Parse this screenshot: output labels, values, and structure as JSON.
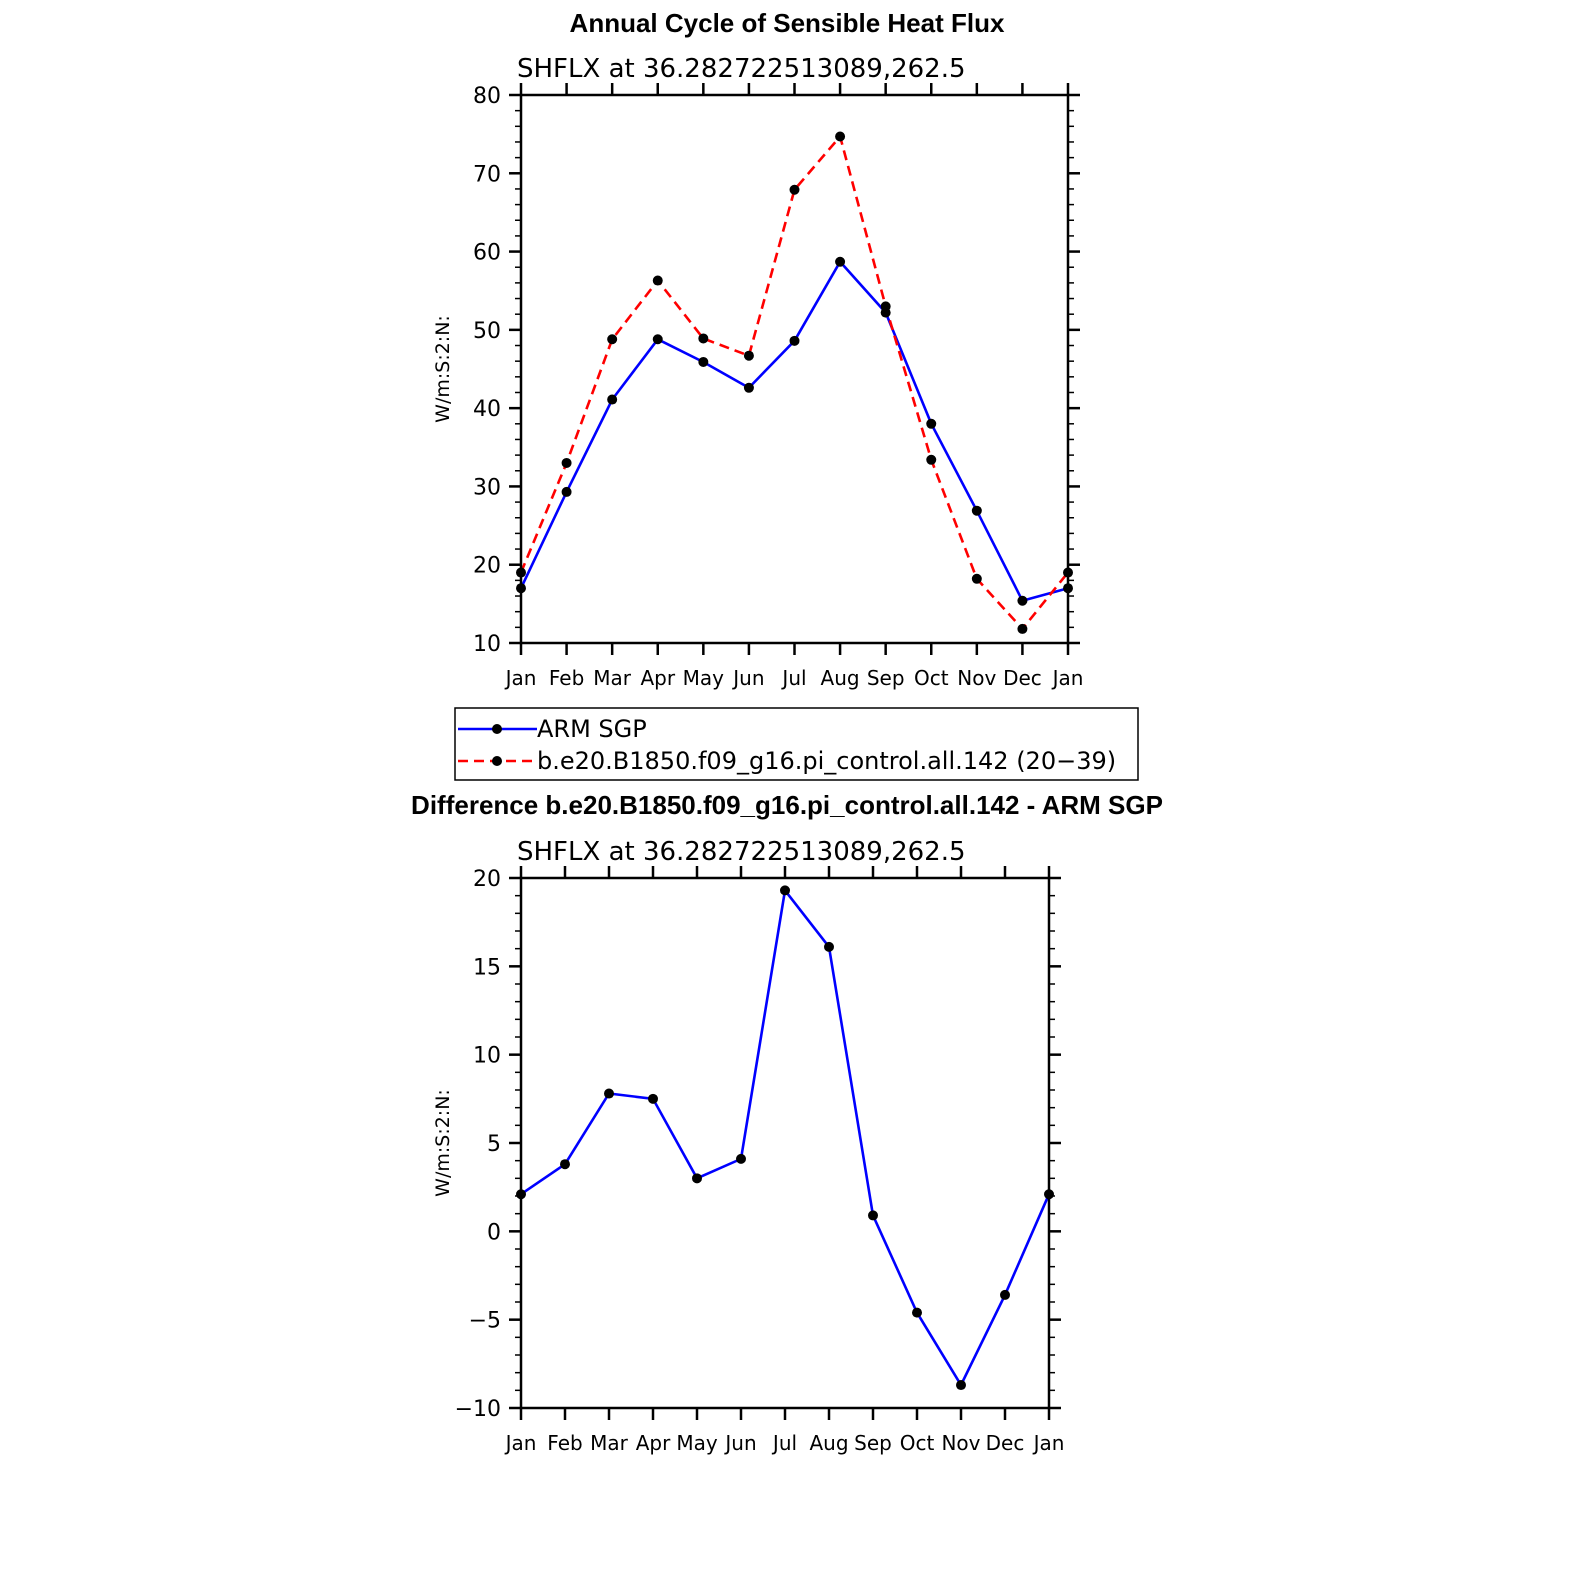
{
  "figure": {
    "title_top": "Annual Cycle of Sensible Heat Flux",
    "title_bottom": "Difference b.e20.B1850.f09_g16.pi_control.all.142 - ARM SGP"
  },
  "chart_data": [
    {
      "type": "line",
      "subtitle": "SHFLX at 36.282722513089,262.5",
      "ylabel": "W/m:S:2:N:",
      "xlabel": "",
      "categories": [
        "Jan",
        "Feb",
        "Mar",
        "Apr",
        "May",
        "Jun",
        "Jul",
        "Aug",
        "Sep",
        "Oct",
        "Nov",
        "Dec",
        "Jan"
      ],
      "ylim": [
        10,
        80
      ],
      "yticks": [
        10,
        20,
        30,
        40,
        50,
        60,
        70,
        80
      ],
      "ytick_labels": [
        "10",
        "20",
        "30",
        "40",
        "50",
        "60",
        "70",
        "80"
      ],
      "legend_position": "below",
      "series": [
        {
          "name": "ARM SGP",
          "color": "#0000ff",
          "dash": "solid",
          "values": [
            17.0,
            29.3,
            41.1,
            48.8,
            45.9,
            42.6,
            48.6,
            58.7,
            52.2,
            38.0,
            26.9,
            15.4,
            17.0
          ]
        },
        {
          "name": "b.e20.B1850.f09_g16.pi_control.all.142 (20−39)",
          "color": "#ff0000",
          "dash": "dashed",
          "values": [
            19.0,
            33.0,
            48.8,
            56.3,
            48.9,
            46.7,
            67.9,
            74.7,
            53.0,
            33.4,
            18.2,
            11.8,
            19.0
          ]
        }
      ]
    },
    {
      "type": "line",
      "subtitle": "SHFLX at 36.282722513089,262.5",
      "ylabel": "W/m:S:2:N:",
      "xlabel": "",
      "categories": [
        "Jan",
        "Feb",
        "Mar",
        "Apr",
        "May",
        "Jun",
        "Jul",
        "Aug",
        "Sep",
        "Oct",
        "Nov",
        "Dec",
        "Jan"
      ],
      "ylim": [
        -10,
        20
      ],
      "yticks": [
        -10,
        -5,
        0,
        5,
        10,
        15,
        20
      ],
      "ytick_labels": [
        "−10",
        "−5",
        "0",
        "5",
        "10",
        "15",
        "20"
      ],
      "series": [
        {
          "color": "#0000ff",
          "dash": "solid",
          "values": [
            2.1,
            3.8,
            7.8,
            7.5,
            3.0,
            4.1,
            19.3,
            16.1,
            0.9,
            -4.6,
            -8.7,
            -3.6,
            2.1
          ]
        }
      ]
    }
  ]
}
